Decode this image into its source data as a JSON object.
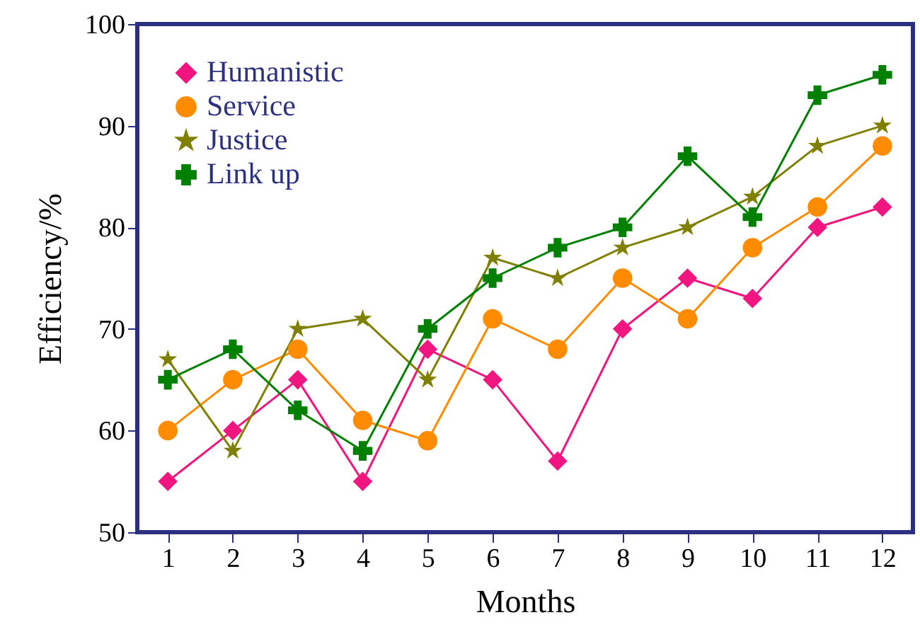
{
  "chart_data": {
    "type": "line",
    "xlabel": "Months",
    "ylabel": "Efficiency/%",
    "x": [
      1,
      2,
      3,
      4,
      5,
      6,
      7,
      8,
      9,
      10,
      11,
      12
    ],
    "xlim": [
      0.53,
      12.47
    ],
    "xticks": [
      1,
      2,
      3,
      4,
      5,
      6,
      7,
      8,
      9,
      10,
      11,
      12
    ],
    "series": [
      {
        "name": "Humanistic",
        "color": "#f0157f",
        "marker": "diamond",
        "values": [
          55,
          60,
          65,
          55,
          68,
          65,
          57,
          70,
          75,
          73,
          80,
          82
        ]
      },
      {
        "name": "Service",
        "color": "#ff8c00",
        "marker": "circle",
        "values": [
          60,
          65,
          68,
          61,
          59,
          71,
          68,
          75,
          71,
          78,
          82,
          88
        ]
      },
      {
        "name": "Justice",
        "color": "#808000",
        "marker": "star",
        "values": [
          67,
          58,
          70,
          71,
          65,
          77,
          75,
          78,
          80,
          83,
          88,
          90
        ]
      },
      {
        "name": "Link up",
        "color": "#008000",
        "marker": "cross",
        "values": [
          65,
          68,
          62,
          58,
          70,
          75,
          78,
          80,
          87,
          81,
          93,
          95
        ]
      }
    ],
    "ylim": [
      50,
      100
    ],
    "yticks": [
      50,
      60,
      70,
      80,
      90,
      100
    ],
    "grid": false,
    "legend": "top left"
  }
}
